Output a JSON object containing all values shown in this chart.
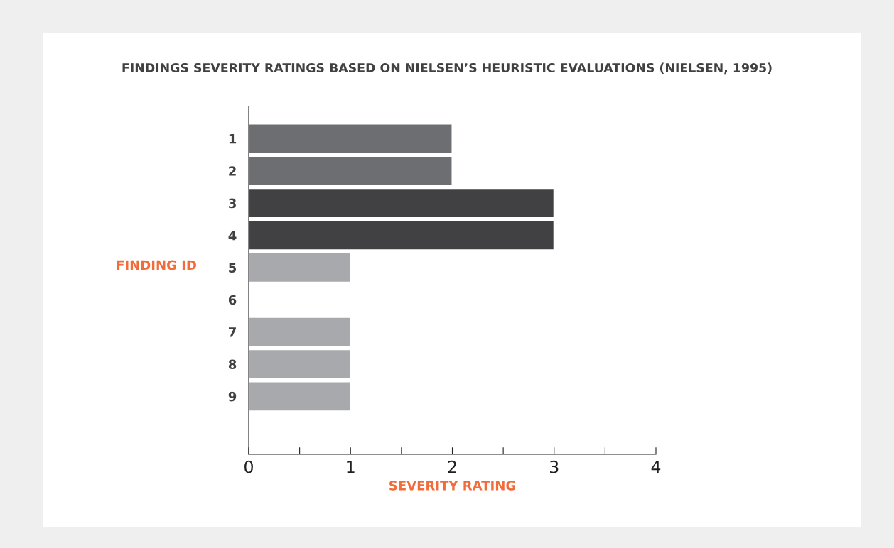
{
  "chart_data": {
    "type": "bar",
    "orientation": "horizontal",
    "title": "FINDINGS SEVERITY RATINGS BASED ON NIELSEN’S HEURISTIC EVALUATIONS (NIELSEN, 1995)",
    "xlabel": "SEVERITY RATING",
    "ylabel": "FINDING ID",
    "categories": [
      "1",
      "2",
      "3",
      "4",
      "5",
      "6",
      "7",
      "8",
      "9"
    ],
    "values": [
      2,
      2,
      3,
      3,
      1,
      0,
      1,
      1,
      1
    ],
    "colors": [
      "#6d6e71",
      "#6d6e71",
      "#414042",
      "#414042",
      "#a7a9ac",
      "#a7a9ac",
      "#a7a9ac",
      "#a7a9ac",
      "#a7a9ac"
    ],
    "xlim": [
      0,
      4
    ],
    "xticks": [
      0,
      {
        "value": 0.5,
        "label": null
      },
      1,
      {
        "value": 1.5,
        "label": null
      },
      2,
      {
        "value": 2.5,
        "label": null
      },
      3,
      {
        "value": 3.5,
        "label": null
      },
      4
    ],
    "grid": false,
    "legend": false
  }
}
